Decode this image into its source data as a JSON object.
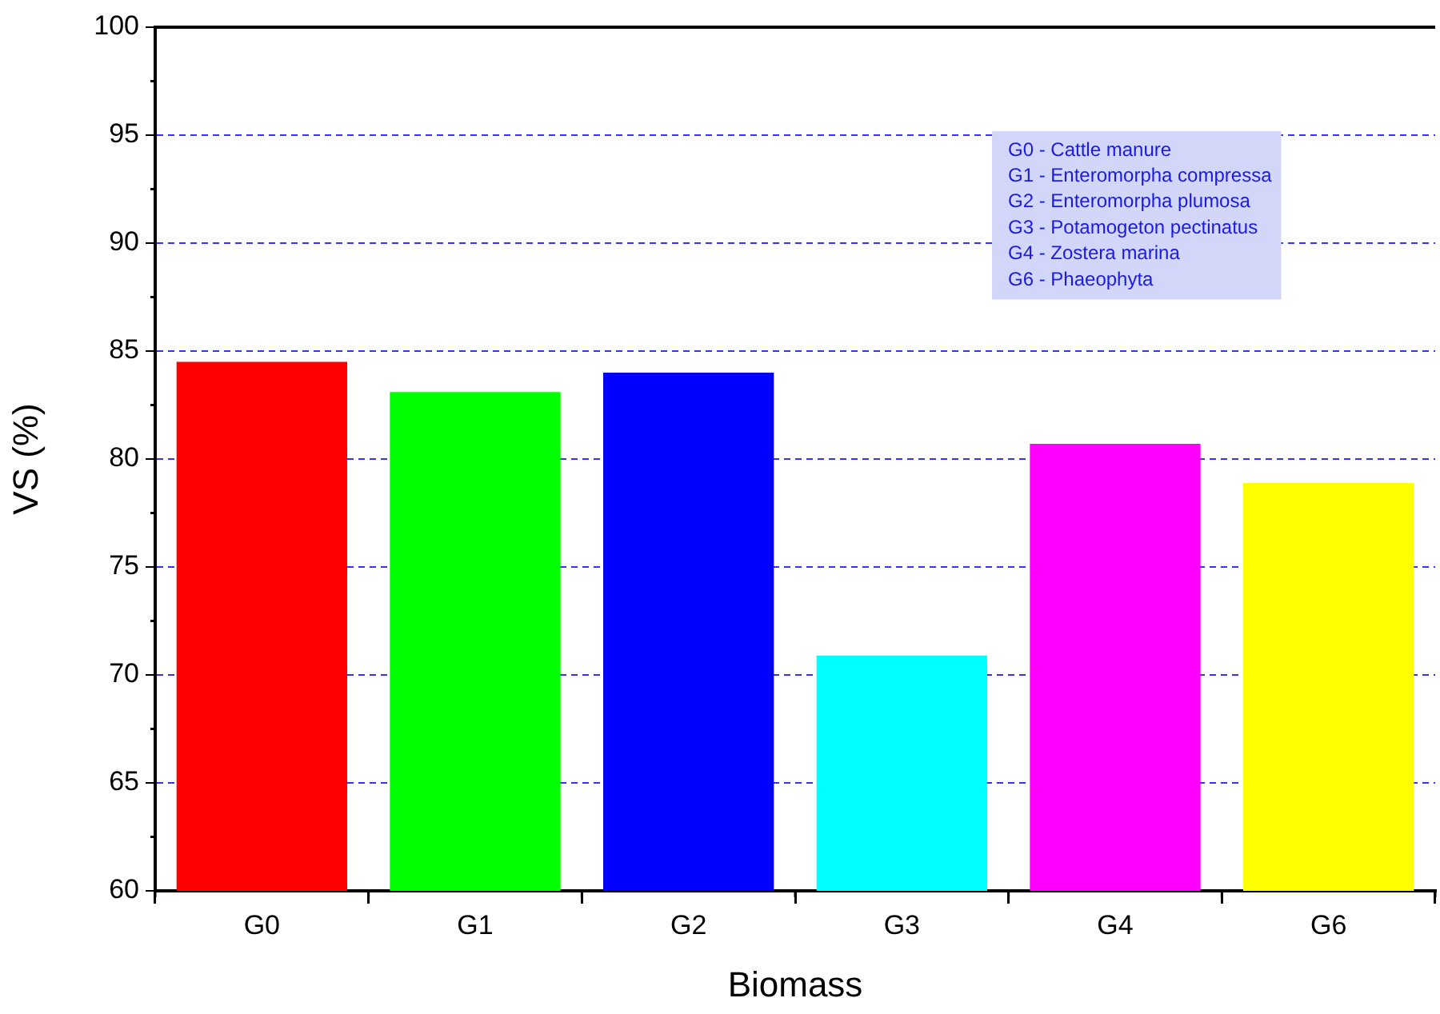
{
  "chart_data": {
    "type": "bar",
    "xlabel": "Biomass",
    "ylabel": "VS (%)",
    "categories": [
      "G0",
      "G1",
      "G2",
      "G3",
      "G4",
      "G6"
    ],
    "values": [
      84.5,
      83.1,
      84.0,
      70.9,
      80.7,
      78.9
    ],
    "colors": [
      "#ff0000",
      "#00ff00",
      "#0000ff",
      "#00ffff",
      "#ff00ff",
      "#ffff00"
    ],
    "ylim": [
      60,
      100
    ],
    "yticks": [
      60,
      65,
      70,
      75,
      80,
      85,
      90,
      95,
      100
    ],
    "grid": "y",
    "legend": false,
    "annotations": [
      "G0 - Cattle manure",
      "G1 - Enteromorpha compressa",
      "G2 - Enteromorpha plumosa",
      "G3 - Potamogeton pectinatus",
      "G4 - Zostera marina",
      "G6 - Phaeophyta"
    ]
  }
}
